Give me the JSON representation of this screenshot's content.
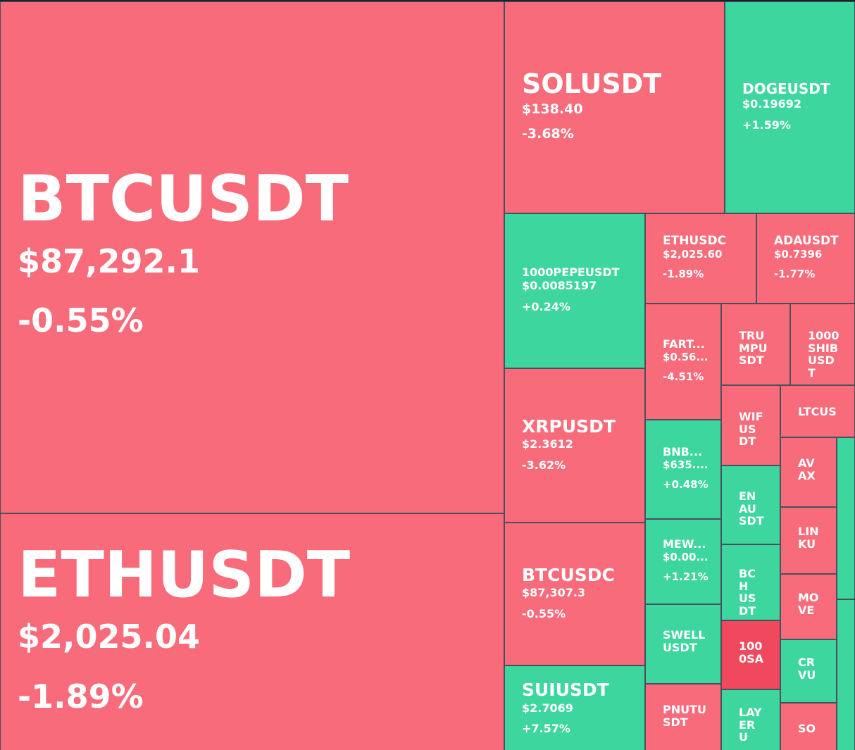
{
  "chart_data": {
    "type": "treemap",
    "colors": {
      "down": "#f76b7b",
      "down_strong": "#f0495d",
      "up": "#3ed69f",
      "border": "#4a4f5c"
    },
    "tiles": [
      {
        "id": "btcusdt",
        "symbol": "BTCUSDT",
        "price": "$87,292.1",
        "change": "-0.55%",
        "change_value": -0.55
      },
      {
        "id": "ethusdt",
        "symbol": "ETHUSDT",
        "price": "$2,025.04",
        "change": "-1.89%",
        "change_value": -1.89
      },
      {
        "id": "solusdt",
        "symbol": "SOLUSDT",
        "price": "$138.40",
        "change": "-3.68%",
        "change_value": -3.68
      },
      {
        "id": "dogeusdt",
        "symbol": "DOGEUSDT",
        "price": "$0.19692",
        "change": "+1.59%",
        "change_value": 1.59
      },
      {
        "id": "1000pepeusdt",
        "symbol": "1000PEPEUSDT",
        "price": "$0.0085197",
        "change": "+0.24%",
        "change_value": 0.24
      },
      {
        "id": "ethusdc",
        "symbol": "ETHUSDC",
        "price": "$2,025.60",
        "change": "-1.89%",
        "change_value": -1.89
      },
      {
        "id": "adausdt",
        "symbol": "ADAUSDT",
        "price": "$0.7396",
        "change": "-1.77%",
        "change_value": -1.77
      },
      {
        "id": "xrpusdt",
        "symbol": "XRPUSDT",
        "price": "$2.3612",
        "change": "-3.62%",
        "change_value": -3.62
      },
      {
        "id": "fartcoin",
        "symbol": "FART...",
        "price": "$0.56...",
        "change": "-4.51%",
        "change_value": -4.51
      },
      {
        "id": "trumpusdt",
        "symbol": "TRUMPUSDT",
        "change_value": -1
      },
      {
        "id": "1000shibusdt",
        "symbol": "1000SHIBUSDT",
        "change_value": -1
      },
      {
        "id": "wifusdt",
        "symbol": "WIFUSDT",
        "change_value": -1
      },
      {
        "id": "ltcusdt",
        "symbol": "LTCUS",
        "change_value": -1
      },
      {
        "id": "bnbusdt",
        "symbol": "BNB...",
        "price": "$635....",
        "change": "+0.48%",
        "change_value": 0.48
      },
      {
        "id": "avaxusdt",
        "symbol": "AVAX",
        "change_value": -1
      },
      {
        "id": "enausdt",
        "symbol": "ENAUSDT",
        "change_value": 1
      },
      {
        "id": "mewusdt",
        "symbol": "MEW...",
        "price": "$0.00...",
        "change": "+1.21%",
        "change_value": 1.21
      },
      {
        "id": "linkusdt",
        "symbol": "LINKU",
        "change_value": -1
      },
      {
        "id": "btcusdc",
        "symbol": "BTCUSDC",
        "price": "$87,307.3",
        "change": "-0.55%",
        "change_value": -0.55
      },
      {
        "id": "bchusdt",
        "symbol": "BCHUSDT",
        "change_value": 1
      },
      {
        "id": "moveusdt",
        "symbol": "MOVE",
        "change_value": -1
      },
      {
        "id": "swellusdt",
        "symbol": "SWELLUSDT",
        "change_value": 1
      },
      {
        "id": "1000sats",
        "symbol": "1000SA",
        "change_value": -5
      },
      {
        "id": "crvusdt",
        "symbol": "CRVU",
        "change_value": 1
      },
      {
        "id": "suiusdt",
        "symbol": "SUIUSDT",
        "price": "$2.7069",
        "change": "+7.57%",
        "change_value": 7.57
      },
      {
        "id": "pnutusdt",
        "symbol": "PNUTUSDT",
        "change_value": -1
      },
      {
        "id": "layerusdt",
        "symbol": "LAYERU",
        "change_value": 1
      },
      {
        "id": "sousdt",
        "symbol": "SO",
        "change_value": -1
      }
    ]
  }
}
